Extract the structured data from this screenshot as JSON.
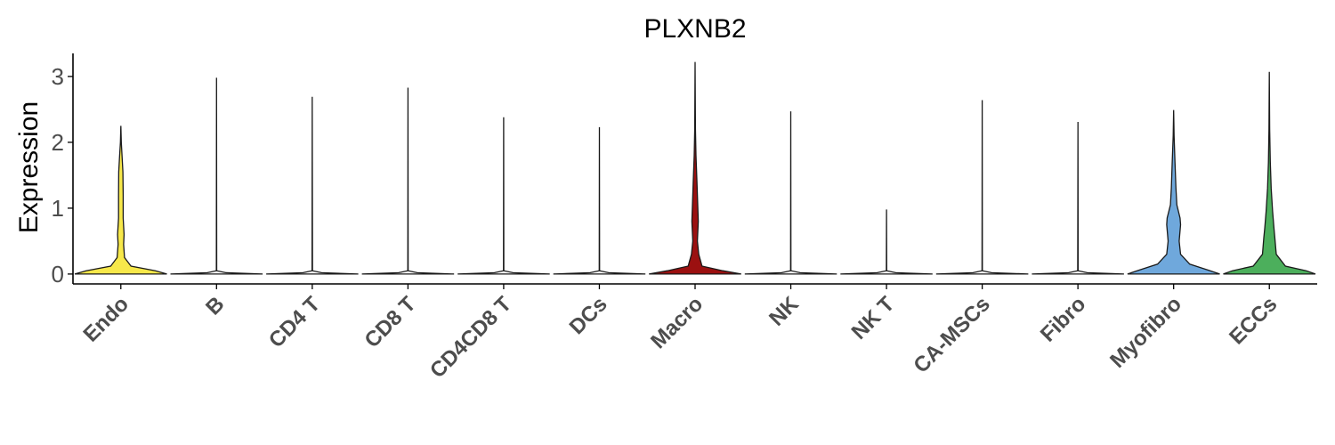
{
  "chart_data": {
    "type": "violin",
    "title": "PLXNB2",
    "xlabel": "",
    "ylabel": "Expression",
    "ylim": [
      -0.15,
      3.35
    ],
    "yticks": [
      0,
      1,
      2,
      3
    ],
    "grid": false,
    "legend": "none",
    "categories": [
      "Endo",
      "B",
      "CD4 T",
      "CD8 T",
      "CD4CD8 T",
      "DCs",
      "Macro",
      "NK",
      "NK T",
      "CA-MSCs",
      "Fibro",
      "Myofibro",
      "ECCs"
    ],
    "colors": [
      "#f7e84a",
      "#ffffff",
      "#ffffff",
      "#ffffff",
      "#ffffff",
      "#ffffff",
      "#9b1010",
      "#ffffff",
      "#ffffff",
      "#ffffff",
      "#ffffff",
      "#6fa8dc",
      "#4caf5c"
    ],
    "max_values": [
      2.25,
      2.98,
      2.69,
      2.83,
      2.38,
      2.23,
      3.22,
      2.47,
      0.98,
      2.64,
      2.31,
      2.49,
      3.07
    ],
    "density_profiles": [
      [
        [
          0,
          1.0
        ],
        [
          0.05,
          0.75
        ],
        [
          0.12,
          0.22
        ],
        [
          0.25,
          0.08
        ],
        [
          0.45,
          0.06
        ],
        [
          0.6,
          0.07
        ],
        [
          0.85,
          0.05
        ],
        [
          1.2,
          0.05
        ],
        [
          1.55,
          0.045
        ],
        [
          1.75,
          0.03
        ],
        [
          2.0,
          0.01
        ],
        [
          2.25,
          0
        ]
      ],
      [
        [
          0,
          1.0
        ],
        [
          0.02,
          0.2
        ],
        [
          0.05,
          0
        ]
      ],
      [
        [
          0,
          1.0
        ],
        [
          0.02,
          0.2
        ],
        [
          0.05,
          0
        ]
      ],
      [
        [
          0,
          1.0
        ],
        [
          0.02,
          0.2
        ],
        [
          0.05,
          0
        ]
      ],
      [
        [
          0,
          1.0
        ],
        [
          0.02,
          0.2
        ],
        [
          0.05,
          0
        ]
      ],
      [
        [
          0,
          1.0
        ],
        [
          0.02,
          0.2
        ],
        [
          0.05,
          0
        ]
      ],
      [
        [
          0,
          1.0
        ],
        [
          0.05,
          0.6
        ],
        [
          0.12,
          0.15
        ],
        [
          0.3,
          0.08
        ],
        [
          0.5,
          0.05
        ],
        [
          0.8,
          0.07
        ],
        [
          1.0,
          0.06
        ],
        [
          1.4,
          0.04
        ],
        [
          1.8,
          0.02
        ],
        [
          2.2,
          0.008
        ],
        [
          3.22,
          0
        ]
      ],
      [
        [
          0,
          1.0
        ],
        [
          0.02,
          0.2
        ],
        [
          0.05,
          0
        ]
      ],
      [
        [
          0,
          1.0
        ],
        [
          0.02,
          0.2
        ],
        [
          0.05,
          0
        ]
      ],
      [
        [
          0,
          1.0
        ],
        [
          0.02,
          0.2
        ],
        [
          0.05,
          0
        ]
      ],
      [
        [
          0,
          1.0
        ],
        [
          0.02,
          0.2
        ],
        [
          0.05,
          0
        ]
      ],
      [
        [
          0,
          1.0
        ],
        [
          0.06,
          0.75
        ],
        [
          0.15,
          0.35
        ],
        [
          0.3,
          0.15
        ],
        [
          0.5,
          0.12
        ],
        [
          0.75,
          0.15
        ],
        [
          0.85,
          0.14
        ],
        [
          1.05,
          0.07
        ],
        [
          1.3,
          0.05
        ],
        [
          1.7,
          0.03
        ],
        [
          2.1,
          0.01
        ],
        [
          2.49,
          0
        ]
      ],
      [
        [
          0,
          1.0
        ],
        [
          0.05,
          0.8
        ],
        [
          0.12,
          0.35
        ],
        [
          0.3,
          0.15
        ],
        [
          0.55,
          0.12
        ],
        [
          0.7,
          0.1
        ],
        [
          0.95,
          0.07
        ],
        [
          1.3,
          0.04
        ],
        [
          1.7,
          0.02
        ],
        [
          2.2,
          0.008
        ],
        [
          3.07,
          0
        ]
      ]
    ]
  }
}
